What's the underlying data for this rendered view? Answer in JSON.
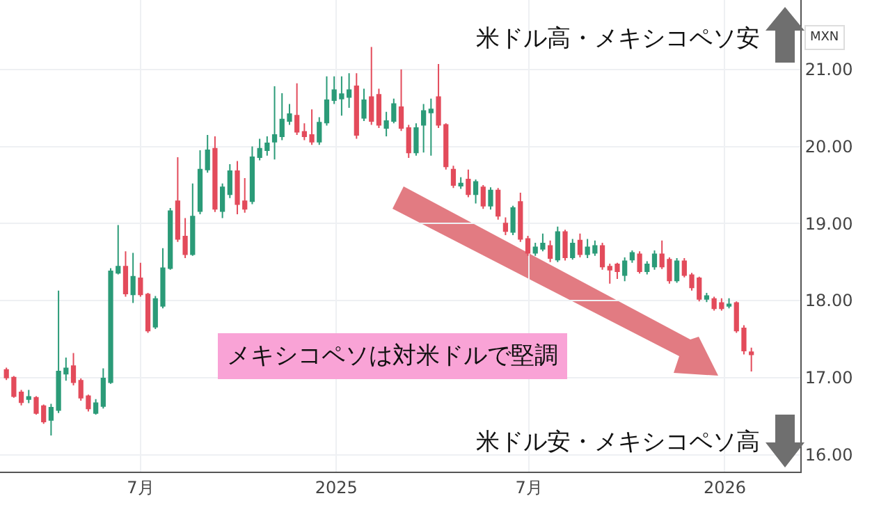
{
  "chart_data": {
    "type": "candlestick",
    "ylabel": "MXN",
    "annotations": [
      "米ドル高・メキシコペソ安",
      "米ドル安・メキシコペソ高",
      "メキシコペソは対米ドルで堅調"
    ],
    "x": [
      "2024-02-26",
      "2024-03-04",
      "2024-03-11",
      "2024-03-18",
      "2024-03-25",
      "2024-04-01",
      "2024-04-08",
      "2024-04-15",
      "2024-04-22",
      "2024-04-29",
      "2024-05-06",
      "2024-05-13",
      "2024-05-20",
      "2024-05-27",
      "2024-06-03",
      "2024-06-10",
      "2024-06-17",
      "2024-06-24",
      "2024-07-01",
      "2024-07-08",
      "2024-07-15",
      "2024-07-22",
      "2024-07-29",
      "2024-08-05",
      "2024-08-12",
      "2024-08-19",
      "2024-08-26",
      "2024-09-02",
      "2024-09-09",
      "2024-09-16",
      "2024-09-23",
      "2024-09-30",
      "2024-10-07",
      "2024-10-14",
      "2024-10-21",
      "2024-10-28",
      "2024-11-04",
      "2024-11-11",
      "2024-11-18",
      "2024-11-25",
      "2024-12-02",
      "2024-12-09",
      "2024-12-16",
      "2024-12-23",
      "2024-12-30",
      "2025-01-06",
      "2025-01-13",
      "2025-01-20",
      "2025-01-27",
      "2025-02-03",
      "2025-02-10",
      "2025-02-17",
      "2025-02-24",
      "2025-03-03",
      "2025-03-10",
      "2025-03-17",
      "2025-03-24",
      "2025-03-31",
      "2025-04-07",
      "2025-04-14",
      "2025-04-21",
      "2025-04-28",
      "2025-05-05",
      "2025-05-12",
      "2025-05-19",
      "2025-05-26",
      "2025-06-02",
      "2025-06-09",
      "2025-06-16",
      "2025-06-23",
      "2025-06-30",
      "2025-07-07",
      "2025-07-14",
      "2025-07-21",
      "2025-07-28",
      "2025-08-04",
      "2025-08-11",
      "2025-08-18",
      "2025-08-25",
      "2025-09-01",
      "2025-09-08",
      "2025-09-15",
      "2025-09-22",
      "2025-09-29",
      "2025-10-06",
      "2025-10-13",
      "2025-10-20",
      "2025-10-27",
      "2025-11-03",
      "2025-11-10",
      "2025-11-17",
      "2025-11-24",
      "2025-12-01",
      "2025-12-08",
      "2025-12-15",
      "2025-12-22",
      "2025-12-29",
      "2026-01-05",
      "2026-01-12",
      "2026-01-19",
      "2026-01-26"
    ],
    "ohlc": [
      [
        17.1,
        17.13,
        16.97,
        17.0
      ],
      [
        17.0,
        17.02,
        16.74,
        16.76
      ],
      [
        16.81,
        16.84,
        16.64,
        16.68
      ],
      [
        16.72,
        16.84,
        16.67,
        16.75
      ],
      [
        16.74,
        16.76,
        16.52,
        16.54
      ],
      [
        16.63,
        16.65,
        16.4,
        16.43
      ],
      [
        16.45,
        16.66,
        16.25,
        16.61
      ],
      [
        16.58,
        18.13,
        16.54,
        17.08
      ],
      [
        17.05,
        17.26,
        16.96,
        17.12
      ],
      [
        17.15,
        17.32,
        16.9,
        16.94
      ],
      [
        16.96,
        16.99,
        16.7,
        16.74
      ],
      [
        16.76,
        16.78,
        16.56,
        16.6
      ],
      [
        16.54,
        16.72,
        16.52,
        16.67
      ],
      [
        16.63,
        17.12,
        16.6,
        16.99
      ],
      [
        16.94,
        18.42,
        16.92,
        18.38
      ],
      [
        18.36,
        18.98,
        18.34,
        18.44
      ],
      [
        18.44,
        18.64,
        18.05,
        18.09
      ],
      [
        18.08,
        18.62,
        17.97,
        18.31
      ],
      [
        18.29,
        18.49,
        18.05,
        18.08
      ],
      [
        18.08,
        18.1,
        17.58,
        17.61
      ],
      [
        17.66,
        18.06,
        17.63,
        18.02
      ],
      [
        17.93,
        18.68,
        17.9,
        18.42
      ],
      [
        18.42,
        19.2,
        18.4,
        19.16
      ],
      [
        19.29,
        19.86,
        18.76,
        18.8
      ],
      [
        18.83,
        19.07,
        18.55,
        18.6
      ],
      [
        18.6,
        19.52,
        18.58,
        19.09
      ],
      [
        19.16,
        19.95,
        19.12,
        19.7
      ],
      [
        19.7,
        20.15,
        19.66,
        19.95
      ],
      [
        19.97,
        20.13,
        19.15,
        19.19
      ],
      [
        19.16,
        19.52,
        19.07,
        19.47
      ],
      [
        19.38,
        19.77,
        19.33,
        19.68
      ],
      [
        19.68,
        19.81,
        19.12,
        19.25
      ],
      [
        19.29,
        19.59,
        19.14,
        19.19
      ],
      [
        19.29,
        20.0,
        19.25,
        19.86
      ],
      [
        19.86,
        20.1,
        19.82,
        19.97
      ],
      [
        19.95,
        20.13,
        19.88,
        20.04
      ],
      [
        20.06,
        20.78,
        19.83,
        20.15
      ],
      [
        20.13,
        20.69,
        20.08,
        20.35
      ],
      [
        20.33,
        20.55,
        20.28,
        20.42
      ],
      [
        20.4,
        20.82,
        20.15,
        20.19
      ],
      [
        20.19,
        20.3,
        20.08,
        20.13
      ],
      [
        20.15,
        20.48,
        20.02,
        20.06
      ],
      [
        20.06,
        20.38,
        20.02,
        20.31
      ],
      [
        20.31,
        20.91,
        20.27,
        20.6
      ],
      [
        20.6,
        20.91,
        20.55,
        20.73
      ],
      [
        20.62,
        20.91,
        20.4,
        20.68
      ],
      [
        20.64,
        20.95,
        20.5,
        20.73
      ],
      [
        20.78,
        20.95,
        20.1,
        20.15
      ],
      [
        20.37,
        20.75,
        20.33,
        20.6
      ],
      [
        20.64,
        21.29,
        20.28,
        20.33
      ],
      [
        20.67,
        20.75,
        20.24,
        20.28
      ],
      [
        20.24,
        20.45,
        20.13,
        20.33
      ],
      [
        20.33,
        20.62,
        20.3,
        20.55
      ],
      [
        20.51,
        21.0,
        20.2,
        20.24
      ],
      [
        20.24,
        20.28,
        19.85,
        19.92
      ],
      [
        19.92,
        20.3,
        19.88,
        20.24
      ],
      [
        20.28,
        20.55,
        19.92,
        20.46
      ],
      [
        20.44,
        20.62,
        19.88,
        20.48
      ],
      [
        20.64,
        21.07,
        20.24,
        20.28
      ],
      [
        20.28,
        20.3,
        19.7,
        19.74
      ],
      [
        19.7,
        19.75,
        19.46,
        19.5
      ],
      [
        19.49,
        19.6,
        19.45,
        19.52
      ],
      [
        19.57,
        19.7,
        19.34,
        19.38
      ],
      [
        19.38,
        19.57,
        19.26,
        19.54
      ],
      [
        19.47,
        19.5,
        19.19,
        19.23
      ],
      [
        19.23,
        19.47,
        19.18,
        19.43
      ],
      [
        19.43,
        19.46,
        19.05,
        19.1
      ],
      [
        19.0,
        19.08,
        18.85,
        18.9
      ],
      [
        18.89,
        19.23,
        18.85,
        19.2
      ],
      [
        19.28,
        19.4,
        18.76,
        18.8
      ],
      [
        18.8,
        18.84,
        18.58,
        18.62
      ],
      [
        18.62,
        18.75,
        18.58,
        18.69
      ],
      [
        18.67,
        18.87,
        18.64,
        18.74
      ],
      [
        18.71,
        18.78,
        18.5,
        18.55
      ],
      [
        18.53,
        18.96,
        18.5,
        18.89
      ],
      [
        18.89,
        18.92,
        18.52,
        18.56
      ],
      [
        18.56,
        18.8,
        18.53,
        18.74
      ],
      [
        18.78,
        18.87,
        18.56,
        18.6
      ],
      [
        18.6,
        18.8,
        18.55,
        18.69
      ],
      [
        18.62,
        18.78,
        18.58,
        18.71
      ],
      [
        18.71,
        18.75,
        18.4,
        18.44
      ],
      [
        18.44,
        18.48,
        18.22,
        18.4
      ],
      [
        18.47,
        18.49,
        18.28,
        18.38
      ],
      [
        18.33,
        18.56,
        18.25,
        18.51
      ],
      [
        18.53,
        18.65,
        18.49,
        18.62
      ],
      [
        18.6,
        18.64,
        18.35,
        18.38
      ],
      [
        18.38,
        18.51,
        18.34,
        18.47
      ],
      [
        18.44,
        18.65,
        18.4,
        18.6
      ],
      [
        18.6,
        18.78,
        18.41,
        18.44
      ],
      [
        18.53,
        18.56,
        18.22,
        18.26
      ],
      [
        18.26,
        18.55,
        18.23,
        18.51
      ],
      [
        18.51,
        18.55,
        18.3,
        18.33
      ],
      [
        18.33,
        18.36,
        18.13,
        18.17
      ],
      [
        18.29,
        18.31,
        17.99,
        18.02
      ],
      [
        18.02,
        18.1,
        17.98,
        18.06
      ],
      [
        18.02,
        18.05,
        17.87,
        17.9
      ],
      [
        17.97,
        18.03,
        17.87,
        17.9
      ],
      [
        17.93,
        18.03,
        17.9,
        17.95
      ],
      [
        17.97,
        17.99,
        17.58,
        17.61
      ],
      [
        17.64,
        17.68,
        17.3,
        17.35
      ],
      [
        17.33,
        17.39,
        17.08,
        17.3
      ]
    ],
    "colors": [
      "#e34b5b",
      "#e34b5b",
      "#e34b5b",
      "#2b9b78",
      "#e34b5b",
      "#e34b5b",
      "#2b9b78",
      "#2b9b78",
      "#2b9b78",
      "#e34b5b",
      "#e34b5b",
      "#e34b5b",
      "#2b9b78",
      "#2b9b78",
      "#2b9b78",
      "#2b9b78",
      "#e34b5b",
      "#2b9b78",
      "#e34b5b",
      "#e34b5b",
      "#2b9b78",
      "#2b9b78",
      "#2b9b78",
      "#e34b5b",
      "#e34b5b",
      "#2b9b78",
      "#2b9b78",
      "#2b9b78",
      "#e34b5b",
      "#2b9b78",
      "#2b9b78",
      "#e34b5b",
      "#e34b5b",
      "#2b9b78",
      "#2b9b78",
      "#2b9b78",
      "#2b9b78",
      "#2b9b78",
      "#2b9b78",
      "#e34b5b",
      "#e34b5b",
      "#e34b5b",
      "#2b9b78",
      "#2b9b78",
      "#2b9b78",
      "#2b9b78",
      "#2b9b78",
      "#e34b5b",
      "#2b9b78",
      "#e34b5b",
      "#e34b5b",
      "#2b9b78",
      "#2b9b78",
      "#e34b5b",
      "#e34b5b",
      "#2b9b78",
      "#2b9b78",
      "#2b9b78",
      "#e34b5b",
      "#e34b5b",
      "#e34b5b",
      "#2b9b78",
      "#e34b5b",
      "#2b9b78",
      "#e34b5b",
      "#2b9b78",
      "#e34b5b",
      "#e34b5b",
      "#2b9b78",
      "#e34b5b",
      "#e34b5b",
      "#2b9b78",
      "#2b9b78",
      "#e34b5b",
      "#2b9b78",
      "#e34b5b",
      "#2b9b78",
      "#e34b5b",
      "#2b9b78",
      "#2b9b78",
      "#e34b5b",
      "#e34b5b",
      "#e34b5b",
      "#2b9b78",
      "#2b9b78",
      "#e34b5b",
      "#2b9b78",
      "#2b9b78",
      "#e34b5b",
      "#e34b5b",
      "#2b9b78",
      "#e34b5b",
      "#e34b5b",
      "#e34b5b",
      "#2b9b78",
      "#e34b5b",
      "#e34b5b",
      "#2b9b78",
      "#e34b5b",
      "#e34b5b",
      "#e34b5b"
    ],
    "xlim": [
      "2024-02-20",
      "2026-03-13"
    ],
    "xticks": [
      {
        "value": "2024-07-01",
        "label": "7月"
      },
      {
        "value": "2025-01-01",
        "label": "2025"
      },
      {
        "value": "2025-07-01",
        "label": "7月"
      },
      {
        "value": "2026-01-01",
        "label": "2026"
      }
    ],
    "ylim": [
      15.78,
      21.9
    ],
    "yticks": [
      {
        "value": 16,
        "label": "16.00"
      },
      {
        "value": 17,
        "label": "17.00"
      },
      {
        "value": 18,
        "label": "18.00"
      },
      {
        "value": 19,
        "label": "19.00"
      },
      {
        "value": 20,
        "label": "20.00"
      },
      {
        "value": 21,
        "label": "21.00"
      }
    ],
    "grid": true
  }
}
